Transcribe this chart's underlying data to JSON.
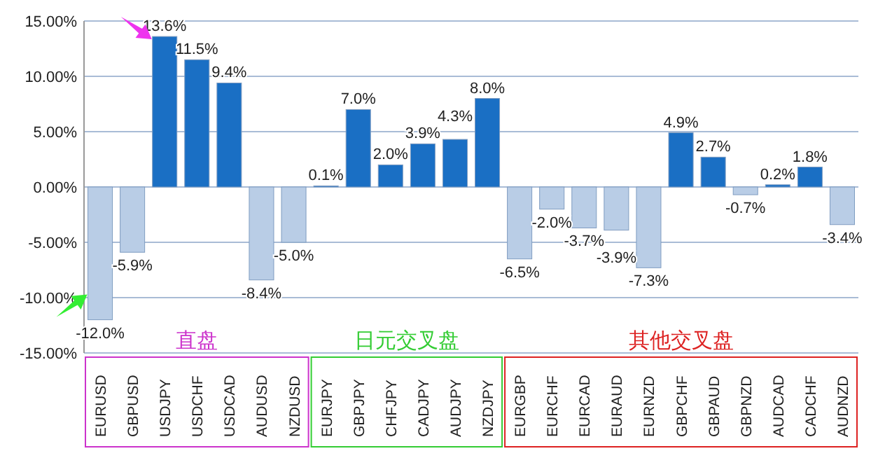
{
  "chart_data": {
    "type": "bar",
    "categories": [
      "EURUSD",
      "GBPUSD",
      "USDJPY",
      "USDCHF",
      "USDCAD",
      "AUDUSD",
      "NZDUSD",
      "EURJPY",
      "GBPJPY",
      "CHFJPY",
      "CADJPY",
      "AUDJPY",
      "NZDJPY",
      "EURGBP",
      "EURCHF",
      "EURCAD",
      "EURAUD",
      "EURNZD",
      "GBPCHF",
      "GBPAUD",
      "GBPNZD",
      "AUDCAD",
      "CADCHF",
      "AUDNZD"
    ],
    "values": [
      -12.0,
      -5.9,
      13.6,
      11.5,
      9.4,
      -8.4,
      -5.0,
      0.1,
      7.0,
      2.0,
      3.9,
      4.3,
      8.0,
      -6.5,
      -2.0,
      -3.7,
      -3.9,
      -7.3,
      4.9,
      2.7,
      -0.7,
      0.2,
      1.8,
      -3.4
    ],
    "value_labels": [
      "-12.0%",
      "-5.9%",
      "13.6%",
      "11.5%",
      "9.4%",
      "-8.4%",
      "-5.0%",
      "0.1%",
      "7.0%",
      "2.0%",
      "3.9%",
      "4.3%",
      "8.0%",
      "-6.5%",
      "-2.0%",
      "-3.7%",
      "-3.9%",
      "-7.3%",
      "4.9%",
      "2.7%",
      "-0.7%",
      "0.2%",
      "1.8%",
      "-3.4%"
    ],
    "colors": [
      "#b9cde6",
      "#b9cde6",
      "#1a6fc4",
      "#1a6fc4",
      "#1a6fc4",
      "#b9cde6",
      "#b9cde6",
      "#1a6fc4",
      "#1a6fc4",
      "#1a6fc4",
      "#1a6fc4",
      "#1a6fc4",
      "#1a6fc4",
      "#b9cde6",
      "#b9cde6",
      "#b9cde6",
      "#b9cde6",
      "#b9cde6",
      "#1a6fc4",
      "#1a6fc4",
      "#b9cde6",
      "#1a6fc4",
      "#1a6fc4",
      "#b9cde6"
    ],
    "ylim": [
      -15,
      15
    ],
    "yticks": [
      {
        "value": -15,
        "label": "-15.00%"
      },
      {
        "value": -10,
        "label": "-10.00%"
      },
      {
        "value": -5,
        "label": "-5.00%"
      },
      {
        "value": 0,
        "label": "0.00%"
      },
      {
        "value": 5,
        "label": "5.00%"
      },
      {
        "value": 10,
        "label": "10.00%"
      },
      {
        "value": 15,
        "label": "15.00%"
      }
    ],
    "grid": "y",
    "annotations": [
      "直盘",
      "日元交叉盘",
      "其他交叉盘"
    ]
  }
}
